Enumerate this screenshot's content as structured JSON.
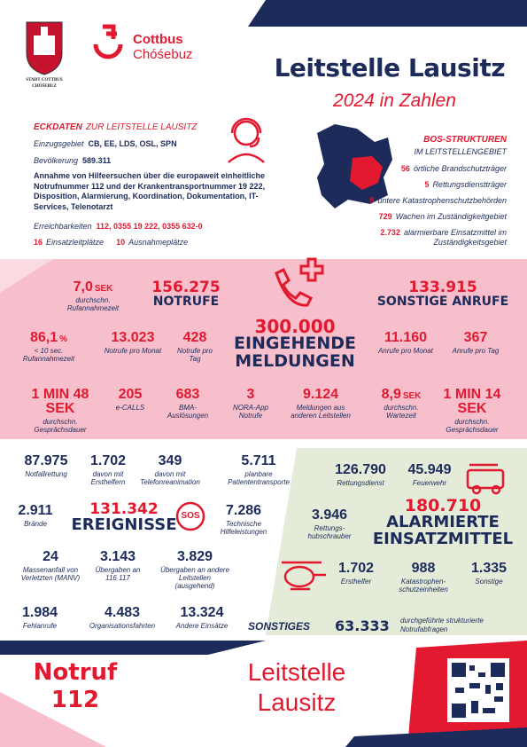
{
  "header": {
    "seal_line1": "STADT COTTBUS",
    "seal_line2": "CHÓŚEBUZ",
    "logo_line1": "Cottbus",
    "logo_line2": "Chóśebuz",
    "title": "Leitstelle Lausitz",
    "subtitle": "2024 in Zahlen"
  },
  "eckdaten": {
    "heading": "ECKDATEN",
    "heading_suffix": "ZUR LEITSTELLE LAUSITZ",
    "rows": [
      {
        "label": "Einzugsgebiet",
        "value": "CB, EE, LDS, OSL, SPN"
      },
      {
        "label": "Bevölkerung",
        "value": "589.311"
      }
    ],
    "description": "Annahme von Hilfeersuchen über die europaweit einheitliche Notrufnummer 112 und der Krankentransportnummer 19 222, Disposition, Alarmierung, Koordination, Dokumentation, IT-Services, Telenotarzt",
    "reach": {
      "label": "Erreichbarkeiten",
      "value": "112, 0355 19 222, 0355 632-0"
    },
    "seats": [
      {
        "value": "16",
        "label": "Einsatzleitplätze"
      },
      {
        "value": "10",
        "label": "Ausnahmeplätze"
      }
    ]
  },
  "bos": {
    "heading": "BOS-STRUKTUREN",
    "sub": "IM LEITSTELLENGEBIET",
    "items": [
      {
        "value": "56",
        "label": "örtliche Brandschutzträger"
      },
      {
        "value": "5",
        "label": "Rettungsdienstträger"
      },
      {
        "value": "5",
        "label": "untere Katastrophenschutzbehörden"
      },
      {
        "value": "729",
        "label": "Wachen im Zuständigkeitgebiet"
      },
      {
        "value": "2.732",
        "label": "alarmierbare Einsatzmittel im Zuständigkeitsgebiet"
      }
    ]
  },
  "calls": {
    "total": {
      "value": "300.000",
      "label": "EINGEHENDE MELDUNGEN"
    },
    "emergency": {
      "value": "156.275",
      "label": "NOTRUFE"
    },
    "other": {
      "value": "133.915",
      "label": "SONSTIGE ANRUFE"
    },
    "stats": [
      {
        "value": "7,0",
        "unit": "SEK",
        "label": "durchschn. Rufannahmezeit"
      },
      {
        "value": "86,1",
        "unit": "%",
        "label": "< 10 sec. Rufannahmezeit"
      },
      {
        "value": "13.023",
        "label": "Notrufe pro Monat"
      },
      {
        "value": "428",
        "label": "Notrufe pro Tag"
      },
      {
        "value": "11.160",
        "label": "Anrufe pro Monat"
      },
      {
        "value": "367",
        "label": "Anrufe pro Tag"
      },
      {
        "value": "1 MIN 48 SEK",
        "label": "durchschn. Gesprächsdauer"
      },
      {
        "value": "205",
        "label": "e-CALLS"
      },
      {
        "value": "683",
        "label": "BMA-Auslösungen"
      },
      {
        "value": "3",
        "label": "NORA-App Notrufe"
      },
      {
        "value": "9.124",
        "label": "Meldungen aus anderen Leitstellen"
      },
      {
        "value": "8,9",
        "unit": "SEK",
        "label": "durchschn. Wartezeit"
      },
      {
        "value": "1 MIN 14 SEK",
        "label": "durchschn. Gesprächsdauer"
      }
    ]
  },
  "events": {
    "total": {
      "value": "131.342",
      "label": "EREIGNISSE"
    },
    "badge": "SOS",
    "stats": [
      {
        "value": "87.975",
        "label": "Notfallrettung"
      },
      {
        "value": "1.702",
        "label": "davon mit Ersthelfern"
      },
      {
        "value": "349",
        "label": "davon mit Telefonreanimation"
      },
      {
        "value": "5.711",
        "label": "planbare Patiententransporte"
      },
      {
        "value": "2.911",
        "label": "Brände"
      },
      {
        "value": "7.286",
        "label": "Technische Hilfeleistungen"
      },
      {
        "value": "24",
        "label": "Massenanfall von Verletzten (MANV)"
      },
      {
        "value": "3.143",
        "label": "Übergaben an 116 117"
      },
      {
        "value": "3.829",
        "label": "Übergaben an andere Leitstellen (ausgehend)"
      },
      {
        "value": "1.984",
        "label": "Fehlanrufe"
      },
      {
        "value": "4.483",
        "label": "Organisationsfahrten"
      },
      {
        "value": "13.324",
        "label": "Andere Einsätze"
      }
    ]
  },
  "units": {
    "total": {
      "value": "180.710",
      "label": "ALARMIERTE EINSATZMITTEL"
    },
    "stats": [
      {
        "value": "126.790",
        "label": "Rettungsdienst"
      },
      {
        "value": "45.949",
        "label": "Feuerwehr"
      },
      {
        "value": "3.946",
        "label": "Rettungs-hubschrauber"
      },
      {
        "value": "1.702",
        "label": "Ersthelfer"
      },
      {
        "value": "988",
        "label": "Katastrophen-schutzeinheiten"
      },
      {
        "value": "1.335",
        "label": "Sonstige"
      }
    ]
  },
  "other": {
    "heading": "SONSTIGES",
    "value": "63.333",
    "label": "durchgeführte strukturierte Notrufabfragen"
  },
  "footer": {
    "notruf": "Notruf",
    "number": "112",
    "line1": "Leitstelle",
    "line2": "Lausitz"
  }
}
